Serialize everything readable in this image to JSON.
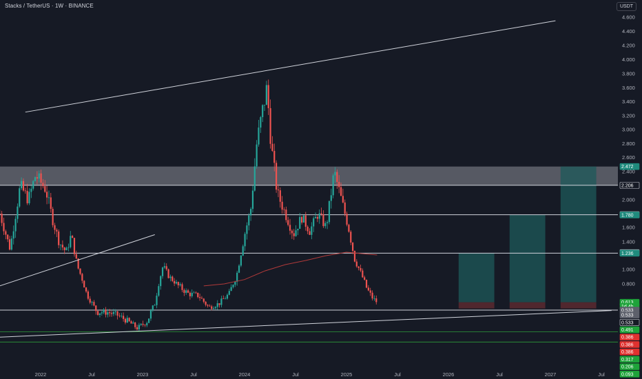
{
  "header": {
    "title": "Stacks / TetherUS · 1W · BINANCE",
    "currency": "USDT"
  },
  "colors": {
    "background": "#161a25",
    "up": "#26a69a",
    "down": "#ef5350",
    "ma": "#b23a3a",
    "line": "#d1d4dc",
    "green_line": "#2e9e3a",
    "zone_fill": "#9598a1",
    "target_fill": "#1e5a5a",
    "stop_fill": "#5a2a30"
  },
  "chart_data": {
    "type": "candlestick",
    "symbol": "STXUSDT",
    "interval": "1W",
    "exchange": "BINANCE",
    "y_ticks": [
      "4.600",
      "4.400",
      "4.200",
      "4.000",
      "3.800",
      "3.600",
      "3.400",
      "3.200",
      "3.000",
      "2.800",
      "2.600",
      "2.400",
      "2.000",
      "1.800",
      "1.600",
      "1.400",
      "1.000",
      "0.800"
    ],
    "x_ticks": [
      "2022",
      "Jul",
      "2023",
      "Jul",
      "2024",
      "Jul",
      "2025",
      "Jul",
      "2026",
      "Jul",
      "2027",
      "Jul"
    ],
    "price_tags": [
      {
        "label": "2.472",
        "price": 2.472,
        "style": "teal"
      },
      {
        "label": "2.206",
        "price": 2.206,
        "style": "white"
      },
      {
        "label": "1.784",
        "price": 1.784,
        "style": "white"
      },
      {
        "label": "1.780",
        "price": 1.78,
        "style": "teal"
      },
      {
        "label": "1.243",
        "price": 1.243,
        "style": "white"
      },
      {
        "label": "1.236",
        "price": 1.236,
        "style": "teal"
      },
      {
        "label": "0.613",
        "price": 0.613,
        "style": "green"
      },
      {
        "label": "1d 4h",
        "price": 0.57,
        "style": "green"
      },
      {
        "label": "0.533",
        "price": 0.533,
        "style": "gray"
      },
      {
        "label": "0.533",
        "price": 0.5,
        "style": "gray"
      },
      {
        "label": "0.533",
        "price": 0.45,
        "style": "white"
      },
      {
        "label": "0.491",
        "price": 0.4,
        "style": "green"
      },
      {
        "label": "0.386",
        "price": 0.35,
        "style": "red"
      },
      {
        "label": "0.386",
        "price": 0.3,
        "style": "red"
      },
      {
        "label": "0.386",
        "price": 0.25,
        "style": "red"
      },
      {
        "label": "0.317",
        "price": 0.2,
        "style": "green"
      },
      {
        "label": "0.206",
        "price": 0.15,
        "style": "green"
      },
      {
        "label": "0.093",
        "price": 0.1,
        "style": "green"
      }
    ],
    "zones": [
      {
        "name": "resistance-zone",
        "from": 2.206,
        "to": 2.472
      }
    ],
    "horizontal_lines": [
      {
        "price": 2.206,
        "color": "white"
      },
      {
        "price": 1.784,
        "color": "white"
      },
      {
        "price": 1.236,
        "color": "white"
      },
      {
        "price": 0.533,
        "color": "green"
      },
      {
        "price": 0.533,
        "color": "white"
      },
      {
        "price": 0.386,
        "color": "green"
      },
      {
        "price": 0.317,
        "color": "green"
      }
    ],
    "trendlines": [
      {
        "name": "upper-trendline",
        "from": {
          "t": 2021.85,
          "p": 3.25
        },
        "to": {
          "t": 2027.05,
          "p": 4.55
        }
      },
      {
        "name": "lower-left-trendline",
        "from": {
          "t": 2021.6,
          "p": 0.78
        },
        "to": {
          "t": 2023.12,
          "p": 1.5
        }
      },
      {
        "name": "support-trendline",
        "from": {
          "t": 2021.6,
          "p": 0.35
        },
        "to": {
          "t": 2027.6,
          "p": 0.53
        }
      }
    ],
    "targets": [
      {
        "name": "tp1",
        "t_start": 2026.1,
        "t_end": 2026.45,
        "entry": 0.613,
        "target": 1.236,
        "stop": 0.55
      },
      {
        "name": "tp2",
        "t_start": 2026.6,
        "t_end": 2026.95,
        "entry": 0.613,
        "target": 1.78,
        "stop": 0.55
      },
      {
        "name": "tp3",
        "t_start": 2027.1,
        "t_end": 2027.45,
        "entry": 0.613,
        "target": 2.472,
        "stop": 0.55
      }
    ],
    "ohlc_keypoints": [
      {
        "t": 2021.6,
        "p": 1.8
      },
      {
        "t": 2021.7,
        "p": 1.3
      },
      {
        "t": 2021.8,
        "p": 2.2
      },
      {
        "t": 2021.88,
        "p": 2.0
      },
      {
        "t": 2021.95,
        "p": 2.35
      },
      {
        "t": 2022.05,
        "p": 2.15
      },
      {
        "t": 2022.12,
        "p": 1.7
      },
      {
        "t": 2022.18,
        "p": 1.4
      },
      {
        "t": 2022.25,
        "p": 1.25
      },
      {
        "t": 2022.3,
        "p": 1.5
      },
      {
        "t": 2022.36,
        "p": 1.05
      },
      {
        "t": 2022.45,
        "p": 0.7
      },
      {
        "t": 2022.55,
        "p": 0.52
      },
      {
        "t": 2022.65,
        "p": 0.52
      },
      {
        "t": 2022.75,
        "p": 0.5
      },
      {
        "t": 2022.85,
        "p": 0.46
      },
      {
        "t": 2022.95,
        "p": 0.41
      },
      {
        "t": 2023.05,
        "p": 0.46
      },
      {
        "t": 2023.12,
        "p": 0.6
      },
      {
        "t": 2023.2,
        "p": 1.05
      },
      {
        "t": 2023.26,
        "p": 0.9
      },
      {
        "t": 2023.35,
        "p": 0.78
      },
      {
        "t": 2023.45,
        "p": 0.7
      },
      {
        "t": 2023.55,
        "p": 0.68
      },
      {
        "t": 2023.65,
        "p": 0.56
      },
      {
        "t": 2023.75,
        "p": 0.6
      },
      {
        "t": 2023.85,
        "p": 0.7
      },
      {
        "t": 2023.92,
        "p": 0.9
      },
      {
        "t": 2024.0,
        "p": 1.5
      },
      {
        "t": 2024.06,
        "p": 1.85
      },
      {
        "t": 2024.12,
        "p": 2.8
      },
      {
        "t": 2024.18,
        "p": 3.3
      },
      {
        "t": 2024.22,
        "p": 3.6
      },
      {
        "t": 2024.26,
        "p": 2.8
      },
      {
        "t": 2024.32,
        "p": 2.1
      },
      {
        "t": 2024.4,
        "p": 1.8
      },
      {
        "t": 2024.48,
        "p": 1.5
      },
      {
        "t": 2024.56,
        "p": 1.75
      },
      {
        "t": 2024.64,
        "p": 1.55
      },
      {
        "t": 2024.72,
        "p": 1.8
      },
      {
        "t": 2024.8,
        "p": 1.6
      },
      {
        "t": 2024.88,
        "p": 2.4
      },
      {
        "t": 2024.95,
        "p": 2.0
      },
      {
        "t": 2025.02,
        "p": 1.6
      },
      {
        "t": 2025.08,
        "p": 1.15
      },
      {
        "t": 2025.14,
        "p": 0.95
      },
      {
        "t": 2025.2,
        "p": 0.75
      },
      {
        "t": 2025.26,
        "p": 0.65
      },
      {
        "t": 2025.3,
        "p": 0.613
      }
    ],
    "ma_keypoints": [
      {
        "t": 2023.6,
        "p": 0.78
      },
      {
        "t": 2023.8,
        "p": 0.8
      },
      {
        "t": 2024.0,
        "p": 0.86
      },
      {
        "t": 2024.2,
        "p": 0.98
      },
      {
        "t": 2024.4,
        "p": 1.07
      },
      {
        "t": 2024.6,
        "p": 1.13
      },
      {
        "t": 2024.8,
        "p": 1.2
      },
      {
        "t": 2025.0,
        "p": 1.25
      },
      {
        "t": 2025.15,
        "p": 1.23
      },
      {
        "t": 2025.3,
        "p": 1.21
      }
    ],
    "grid": false,
    "price_range": [
      0.09,
      4.7
    ],
    "time_range": [
      2021.58,
      2027.62
    ]
  }
}
